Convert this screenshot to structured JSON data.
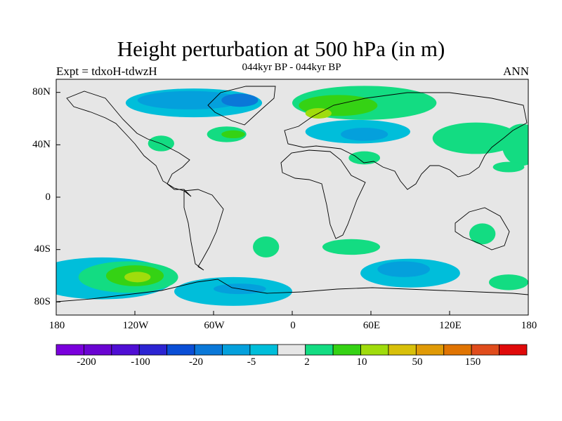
{
  "title": "Height perturbation at 500 hPa (in m)",
  "subtitle": "044kyr BP - 044kyr BP",
  "left_label": "Expt = tdxoH-tdwzH",
  "right_label": "ANN",
  "map": {
    "projection": "cylindrical-equidistant",
    "lon_range": [
      -180,
      180
    ],
    "lat_range": [
      -90,
      90
    ],
    "background_color": "#e6e6e6",
    "coastline_color": "#000000",
    "x_ticks": [
      "180",
      "120W",
      "60W",
      "0",
      "60E",
      "120E",
      "180"
    ],
    "y_ticks": [
      "80N",
      "40N",
      "0",
      "40S",
      "80S"
    ]
  },
  "colorbar": {
    "colors": [
      "#7a00dc",
      "#6a04d2",
      "#4f0ed4",
      "#2c24d2",
      "#0a4ed6",
      "#0a78d8",
      "#04a0dc",
      "#00beda",
      "#e6e6e6",
      "#13dc82",
      "#35d214",
      "#a0dc0c",
      "#d8c00a",
      "#e09a06",
      "#e07402",
      "#e04c1c",
      "#e00a0a"
    ],
    "labels": [
      "-200",
      "-100",
      "-20",
      "-5",
      "2",
      "10",
      "50",
      "150"
    ]
  },
  "regions": [
    {
      "name": "arctic-canada-negative",
      "color": "#00beda",
      "lon": -75,
      "lat": 72,
      "rx": 52,
      "ry": 11
    },
    {
      "name": "greenland-low",
      "color": "#04a0dc",
      "lon": -78,
      "lat": 74,
      "rx": 40,
      "ry": 7
    },
    {
      "name": "greenland-core",
      "color": "#0a78d8",
      "lon": -40,
      "lat": 74,
      "rx": 14,
      "ry": 5
    },
    {
      "name": "pacific-north-positive",
      "color": "#13dc82",
      "lon": -100,
      "lat": 41,
      "rx": 10,
      "ry": 6
    },
    {
      "name": "atlantic-north-positive",
      "color": "#13dc82",
      "lon": -50,
      "lat": 48,
      "rx": 15,
      "ry": 6
    },
    {
      "name": "atlantic-north-core",
      "color": "#35d214",
      "lon": -45,
      "lat": 48,
      "rx": 9,
      "ry": 3
    },
    {
      "name": "eurasia-positive",
      "color": "#13dc82",
      "lon": 55,
      "lat": 72,
      "rx": 55,
      "ry": 13
    },
    {
      "name": "eurasia-core",
      "color": "#35d214",
      "lon": 35,
      "lat": 70,
      "rx": 30,
      "ry": 8
    },
    {
      "name": "eurasia-peak",
      "color": "#a0dc0c",
      "lon": 20,
      "lat": 64,
      "rx": 10,
      "ry": 4
    },
    {
      "name": "mediterranean-negative",
      "color": "#00beda",
      "lon": 50,
      "lat": 50,
      "rx": 40,
      "ry": 9
    },
    {
      "name": "central-asia-low",
      "color": "#04a0dc",
      "lon": 55,
      "lat": 48,
      "rx": 18,
      "ry": 5
    },
    {
      "name": "middle-east-positive",
      "color": "#13dc82",
      "lon": 55,
      "lat": 30,
      "rx": 12,
      "ry": 5
    },
    {
      "name": "east-asia-positive",
      "color": "#13dc82",
      "lon": 140,
      "lat": 45,
      "rx": 33,
      "ry": 12
    },
    {
      "name": "pacific-west-positive",
      "color": "#13dc82",
      "lon": 175,
      "lat": 40,
      "rx": 15,
      "ry": 16
    },
    {
      "name": "south-pacific-negative",
      "color": "#00beda",
      "lon": -145,
      "lat": -62,
      "rx": 55,
      "ry": 16
    },
    {
      "name": "south-pacific-positive",
      "color": "#13dc82",
      "lon": -125,
      "lat": -61,
      "rx": 38,
      "ry": 12
    },
    {
      "name": "south-pacific-core",
      "color": "#35d214",
      "lon": -120,
      "lat": -60,
      "rx": 22,
      "ry": 8
    },
    {
      "name": "south-pacific-peak",
      "color": "#a0dc0c",
      "lon": -118,
      "lat": -61,
      "rx": 10,
      "ry": 4
    },
    {
      "name": "southern-ocean-negative",
      "color": "#00beda",
      "lon": -45,
      "lat": -72,
      "rx": 45,
      "ry": 11
    },
    {
      "name": "antarctic-low",
      "color": "#04a0dc",
      "lon": -40,
      "lat": -70,
      "rx": 20,
      "ry": 4
    },
    {
      "name": "south-atlantic-positive",
      "color": "#13dc82",
      "lon": -20,
      "lat": -38,
      "rx": 10,
      "ry": 8
    },
    {
      "name": "south-indian-positive",
      "color": "#13dc82",
      "lon": 45,
      "lat": -38,
      "rx": 22,
      "ry": 6
    },
    {
      "name": "southern-indian-negative",
      "color": "#00beda",
      "lon": 90,
      "lat": -58,
      "rx": 38,
      "ry": 11
    },
    {
      "name": "southern-indian-low",
      "color": "#04a0dc",
      "lon": 85,
      "lat": -55,
      "rx": 20,
      "ry": 6
    },
    {
      "name": "australia-positive",
      "color": "#13dc82",
      "lon": 145,
      "lat": -28,
      "rx": 10,
      "ry": 8
    },
    {
      "name": "tasman-positive",
      "color": "#13dc82",
      "lon": 165,
      "lat": -65,
      "rx": 15,
      "ry": 6
    },
    {
      "name": "west-pacific-positive",
      "color": "#13dc82",
      "lon": 165,
      "lat": 23,
      "rx": 12,
      "ry": 4
    }
  ]
}
